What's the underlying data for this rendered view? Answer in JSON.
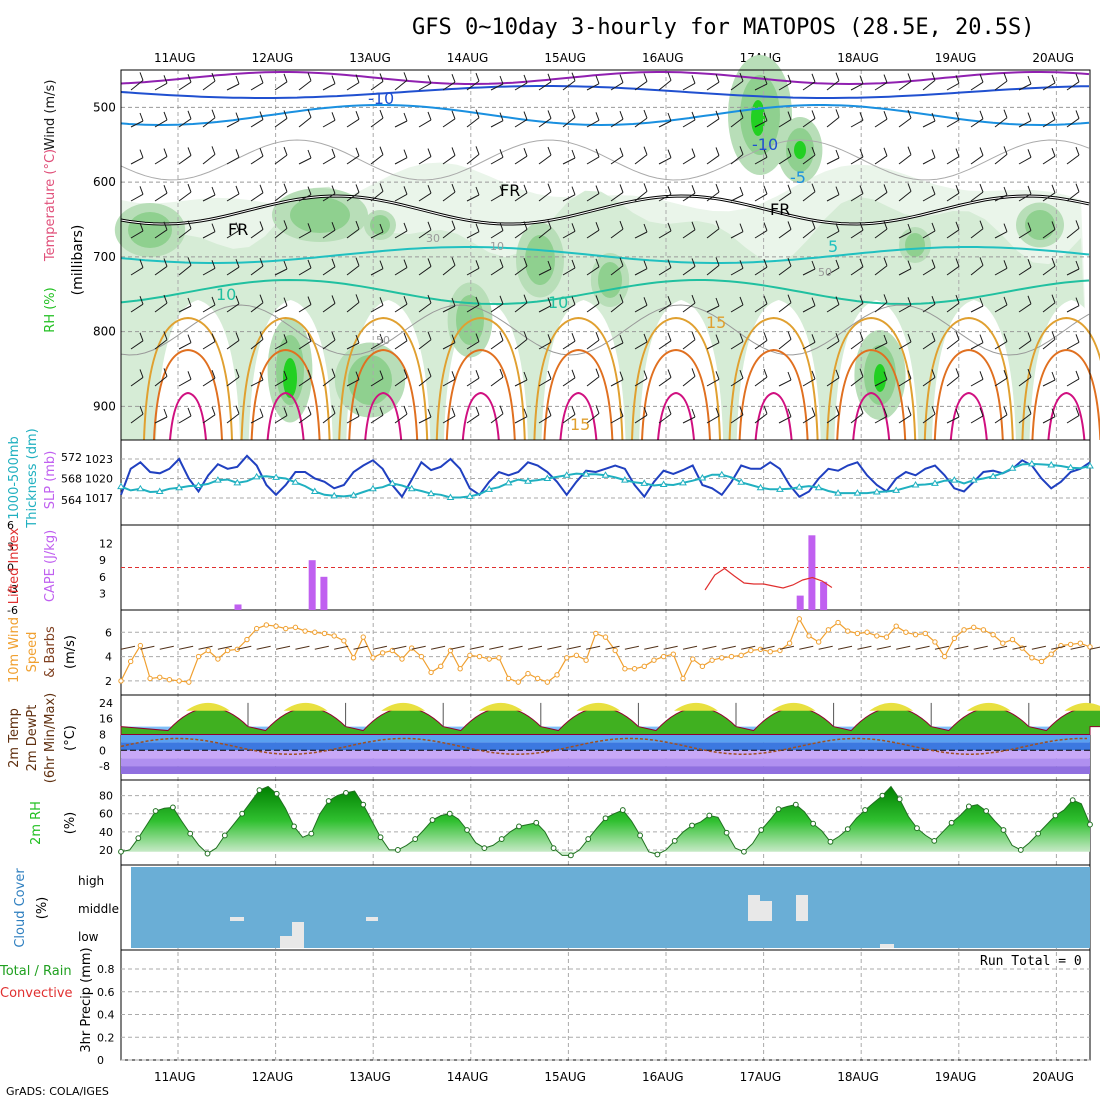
{
  "title": "GFS 0~10day 3-hourly for MATOPOS (28.5E, 20.5S)",
  "credit": "GrADS: COLA/IGES",
  "run_total": "Run Total = 0",
  "date_labels": [
    "11AUG",
    "12AUG",
    "13AUG",
    "14AUG",
    "15AUG",
    "16AUG",
    "17AUG",
    "18AUG",
    "19AUG",
    "20AUG"
  ],
  "colors": {
    "wind": "#1a1a1a",
    "temperature": "#e0507a",
    "rh": "#22c022",
    "thickness": "#20b0c0",
    "slp": "#2040c0",
    "lifted_index": "#e03030",
    "cape": "#c060f0",
    "speed": "#f0a030",
    "dewpoint": "#a05020",
    "cloud": "#6aaed6",
    "precip": "#20a020",
    "convective": "#e03030"
  },
  "panel_labels": {
    "upper": [
      "Wind (m/s)",
      "Temperature (°C)",
      "RH (%)",
      "(millibars)"
    ],
    "thickness": [
      "1000-500mb",
      "Thickness (dm)",
      "SLP (mb)"
    ],
    "cape": [
      "Lifted Index",
      "CAPE (J/kg)"
    ],
    "wind10": [
      "10m Wind",
      "Speed",
      "& Barbs",
      "(m/s)"
    ],
    "temp2m": [
      "2m Temp",
      "2m DewPt",
      "(6hr Min/Max)",
      "(°C)"
    ],
    "rh2m": [
      "2m RH",
      "(%)"
    ],
    "cloud": [
      "Cloud Cover",
      "(%)"
    ],
    "precip": [
      "Total / Rain",
      "Convective",
      "3hr Precip (mm)"
    ]
  },
  "contour_labels": [
    {
      "id": "t-10a",
      "text": "-10"
    },
    {
      "id": "t-10b",
      "text": "-10"
    },
    {
      "id": "t-5a",
      "text": "-5"
    },
    {
      "id": "t5",
      "text": "5"
    },
    {
      "id": "t10a",
      "text": "10"
    },
    {
      "id": "t10b",
      "text": "10"
    },
    {
      "id": "t15a",
      "text": "15"
    },
    {
      "id": "t15b",
      "text": "15"
    },
    {
      "id": "fr1",
      "text": "FR"
    },
    {
      "id": "fr2",
      "text": "FR"
    },
    {
      "id": "fr3",
      "text": "FR"
    },
    {
      "id": "rh30",
      "text": "30"
    },
    {
      "id": "rh10",
      "text": "10"
    },
    {
      "id": "rh50a",
      "text": "50"
    },
    {
      "id": "rh50b",
      "text": "50"
    }
  ],
  "chart_data": [
    {
      "type": "heatmap",
      "name": "upper-air cross-section",
      "y_ticks": [
        500,
        600,
        700,
        800,
        900
      ],
      "ylabel": "(millibars)",
      "contour_levels_temp": [
        "-10",
        "-5",
        "5",
        "10",
        "15"
      ],
      "freezing_label": "FR"
    },
    {
      "type": "line",
      "ylabel_left": "1000-500mb Thickness (dm)",
      "ylabel_right": "SLP (mb)",
      "y_ticks_thickness": [
        564,
        568,
        572
      ],
      "y_ticks_slp": [
        1017,
        1020,
        1023
      ],
      "series": [
        {
          "name": "Thickness",
          "values": [
            566.5,
            565.8,
            566.1,
            565.5,
            565.6,
            566.1,
            566.3,
            566.6,
            566.7,
            567.0,
            567.7,
            567.8,
            567.2,
            567.5,
            568.3,
            568.4,
            568.2,
            568.0,
            567.3,
            566.6,
            565.6,
            565.0,
            564.8,
            564.7,
            564.9,
            565.5,
            566.1,
            566.4,
            567.1,
            566.7,
            566.1,
            565.7,
            565.2,
            565.0,
            564.5,
            564.5,
            564.7,
            565.1,
            566.0,
            566.4,
            567.2,
            567.8,
            567.5,
            567.7,
            568.0,
            568.3,
            568.6,
            568.9,
            568.8,
            568.8,
            568.6,
            568.2,
            567.7,
            567.3,
            567.1,
            566.7,
            566.9,
            566.8,
            567.2,
            567.6,
            568.1,
            568.7,
            568.7,
            568.2,
            567.3,
            566.8,
            566.3,
            566.0,
            566.0,
            566.1,
            566.4,
            566.6,
            566.3,
            565.7,
            565.3,
            565.3,
            565.3,
            565.3,
            565.5,
            565.6,
            565.8,
            566.3,
            566.8,
            566.9,
            567.1,
            567.6,
            567.7,
            567.1,
            567.7,
            568.0,
            568.4,
            569.0,
            569.9,
            570.6,
            570.7,
            570.6,
            570.5,
            570.3,
            570.0,
            569.9,
            570.3
          ]
        },
        {
          "name": "SLP",
          "values": [
            1017.5,
            1021.5,
            1022.5,
            1021.0,
            1020.8,
            1021.5,
            1023.0,
            1020.0,
            1018.0,
            1020.5,
            1022.2,
            1021.5,
            1021.8,
            1023.5,
            1022.0,
            1019.0,
            1017.5,
            1019.0,
            1021.0,
            1021.0,
            1020.0,
            1019.5,
            1018.5,
            1019.0,
            1021.0,
            1022.0,
            1022.8,
            1021.5,
            1019.0,
            1017.2,
            1019.8,
            1022.5,
            1021.3,
            1021.8,
            1023.0,
            1021.5,
            1018.5,
            1017.5,
            1019.5,
            1021.0,
            1020.5,
            1021.0,
            1022.5,
            1022.0,
            1021.0,
            1019.5,
            1017.5,
            1019.5,
            1021.2,
            1021.0,
            1021.5,
            1022.0,
            1021.5,
            1019.0,
            1017.2,
            1019.5,
            1021.2,
            1020.7,
            1021.3,
            1022.0,
            1019.0,
            1018.5,
            1017.5,
            1019.5,
            1022.0,
            1021.5,
            1021.5,
            1022.5,
            1021.5,
            1019.0,
            1017.2,
            1018.0,
            1020.0,
            1021.5,
            1021.2,
            1022.0,
            1022.5,
            1020.5,
            1019.0,
            1018.0,
            1020.0,
            1021.0,
            1020.5,
            1021.5,
            1022.0,
            1020.5,
            1018.5,
            1018.0,
            1019.5,
            1021.0,
            1021.2,
            1020.8,
            1021.5,
            1022.8,
            1022.0,
            1020.0,
            1018.5,
            1019.5,
            1021.0,
            1021.5,
            1022.5
          ]
        }
      ]
    },
    {
      "type": "bar",
      "ylabel_left": "Lifted Index",
      "ylabel_right": "CAPE (J/kg)",
      "y_ticks_li": [
        "6",
        "3",
        "0",
        "-3",
        "-6"
      ],
      "y_ticks_cape": [
        3,
        6,
        9,
        12
      ],
      "cape_bars": [
        {
          "x": 11.62,
          "v": 1
        },
        {
          "x": 12.38,
          "v": 9
        },
        {
          "x": 12.5,
          "v": 6
        },
        {
          "x": 17.38,
          "v": 2.6
        },
        {
          "x": 17.5,
          "v": 13.5
        },
        {
          "x": 17.62,
          "v": 5.1
        }
      ],
      "lifted_index": [
        {
          "x": 16.4,
          "v": 3.0
        },
        {
          "x": 16.5,
          "v": 0.0
        },
        {
          "x": 16.6,
          "v": -1.3
        },
        {
          "x": 16.7,
          "v": 0.2
        },
        {
          "x": 16.8,
          "v": 1.6
        },
        {
          "x": 16.9,
          "v": 1.8
        },
        {
          "x": 17.0,
          "v": 1.8
        },
        {
          "x": 17.1,
          "v": 2.2
        },
        {
          "x": 17.2,
          "v": 2.6
        },
        {
          "x": 17.3,
          "v": 2.0
        },
        {
          "x": 17.4,
          "v": 1.0
        },
        {
          "x": 17.5,
          "v": 0.5
        },
        {
          "x": 17.6,
          "v": 1.2
        },
        {
          "x": 17.7,
          "v": 2.5
        }
      ]
    },
    {
      "type": "line",
      "ylabel": "10m Wind Speed & Barbs (m/s)",
      "y_ticks": [
        2,
        4,
        6
      ],
      "series": [
        {
          "name": "Speed",
          "values": [
            2.0,
            3.6,
            4.9,
            2.2,
            2.3,
            2.1,
            2.0,
            1.9,
            4.0,
            4.5,
            3.8,
            4.5,
            4.6,
            5.4,
            6.3,
            6.6,
            6.5,
            6.3,
            6.4,
            6.1,
            6.0,
            5.9,
            5.7,
            5.3,
            3.9,
            5.6,
            3.9,
            4.3,
            4.5,
            3.8,
            4.7,
            4.0,
            2.7,
            3.2,
            4.5,
            3.0,
            4.1,
            4.0,
            3.8,
            3.9,
            2.2,
            1.9,
            2.6,
            2.2,
            1.9,
            2.5,
            3.9,
            4.1,
            3.7,
            5.9,
            5.6,
            4.5,
            3.0,
            3.0,
            3.2,
            3.7,
            4.0,
            4.2,
            2.2,
            3.8,
            3.2,
            3.7,
            3.9,
            4.0,
            4.1,
            4.5,
            4.6,
            4.4,
            4.5,
            5.1,
            7.1,
            5.7,
            5.2,
            6.2,
            6.8,
            6.1,
            5.9,
            6.0,
            5.7,
            5.6,
            6.5,
            6.0,
            5.8,
            5.9,
            5.2,
            4.0,
            5.5,
            6.2,
            6.4,
            6.2,
            5.8,
            5.1,
            5.4,
            4.7,
            3.9,
            3.6,
            4.2,
            4.9,
            5.0,
            5.1,
            4.8
          ]
        }
      ]
    },
    {
      "type": "area",
      "ylabel": "2m Temp 2m DewPt (6hr Min/Max) (°C)",
      "y_ticks": [
        -8,
        0,
        8,
        16,
        24
      ],
      "note": "daily cycle approx 8 to 25 °C; dewpoint approx -5 to 6 °C"
    },
    {
      "type": "area",
      "ylabel": "2m RH (%)",
      "y_ticks": [
        20,
        40,
        60,
        80
      ],
      "series": [
        {
          "name": "2m RH",
          "values": [
            18,
            20,
            33,
            48,
            63,
            66,
            67,
            52,
            38,
            25,
            16,
            22,
            36,
            48,
            60,
            73,
            86,
            90,
            82,
            66,
            46,
            34,
            38,
            60,
            74,
            80,
            83,
            85,
            70,
            52,
            34,
            20,
            20,
            25,
            32,
            42,
            53,
            58,
            60,
            54,
            42,
            28,
            22,
            25,
            32,
            40,
            46,
            48,
            50,
            40,
            22,
            14,
            14,
            20,
            32,
            44,
            55,
            60,
            64,
            52,
            36,
            18,
            15,
            20,
            30,
            40,
            47,
            51,
            58,
            56,
            39,
            22,
            18,
            27,
            42,
            53,
            65,
            68,
            70,
            62,
            49,
            41,
            29,
            35,
            43,
            55,
            64,
            72,
            80,
            90,
            76,
            57,
            44,
            36,
            30,
            40,
            50,
            58,
            68,
            70,
            63,
            52,
            42,
            25,
            20,
            28,
            38,
            48,
            58,
            64,
            75,
            71,
            48
          ]
        }
      ]
    },
    {
      "type": "bar",
      "ylabel": "Cloud Cover (%)",
      "categories": [
        "high",
        "middle",
        "low"
      ],
      "note": "mostly clear; isolated middle/low cloud on 12AUG, 17AUG, 18AUG"
    },
    {
      "type": "bar",
      "ylabel": "3hr Precip (mm)",
      "y_ticks": [
        0,
        0.2,
        0.4,
        0.6,
        0.8
      ],
      "values": [],
      "run_total": 0
    }
  ]
}
